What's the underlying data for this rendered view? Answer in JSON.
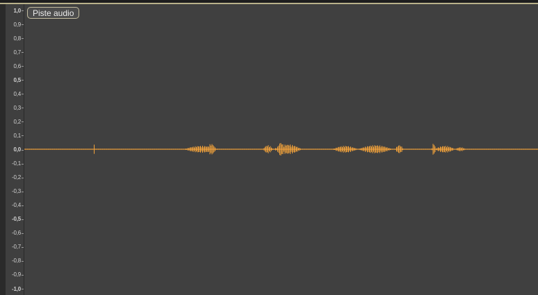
{
  "track": {
    "name": "Piste audio"
  },
  "amplitude_scale": {
    "labels": [
      "1,0",
      "0,9",
      "0,8",
      "0,7",
      "0,6",
      "0,5",
      "0,4",
      "0,3",
      "0,2",
      "0,1",
      "0,0",
      "-0,1",
      "-0,2",
      "-0,3",
      "-0,4",
      "-0,5",
      "-0,6",
      "-0,7",
      "-0,8",
      "-0,9",
      "-1,0"
    ],
    "bold_labels": [
      "1,0",
      "0,5",
      "0,0",
      "-0,5",
      "-1,0"
    ],
    "min": -1.0,
    "max": 1.0
  },
  "waveform": {
    "color": "#f5a33a",
    "background": "#404040"
  }
}
